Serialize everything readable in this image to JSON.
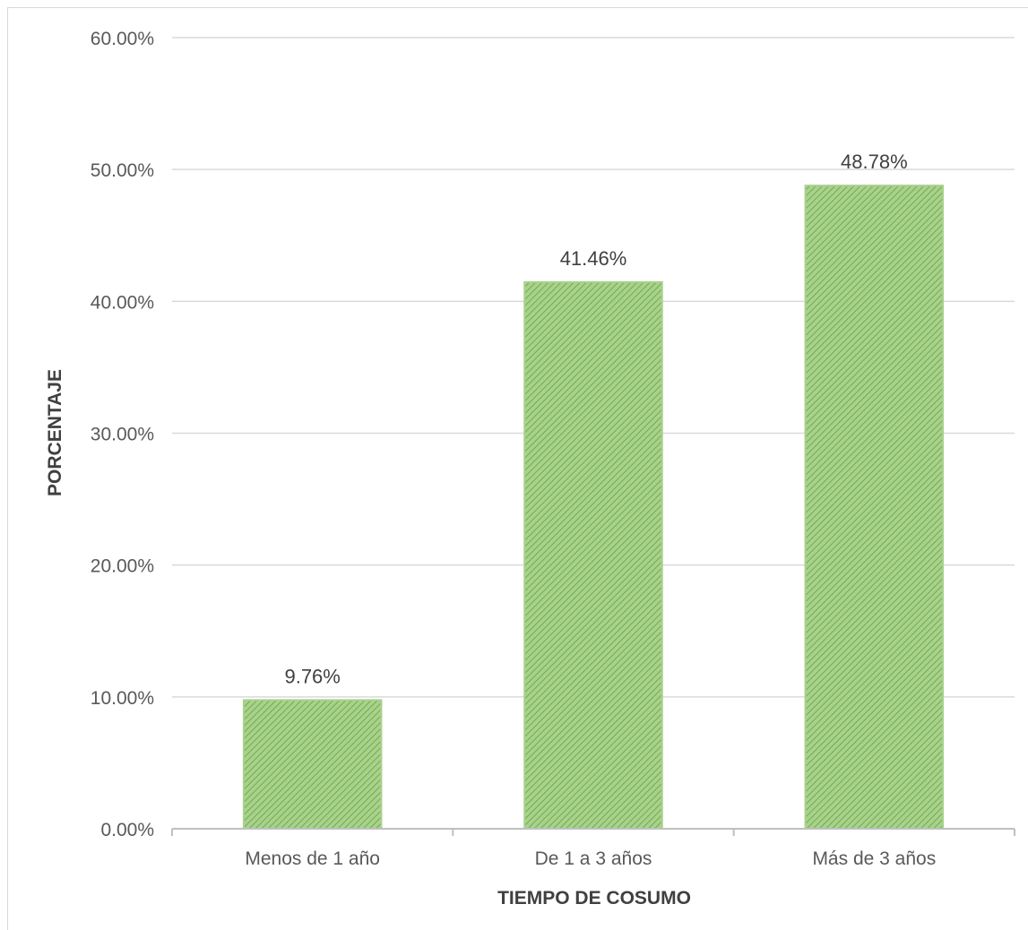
{
  "chart_data": {
    "type": "bar",
    "title": "",
    "xlabel": "TIEMPO DE COSUMO",
    "ylabel": "PORCENTAJE",
    "categories": [
      "Menos de 1 año",
      "De 1 a 3 años",
      "Más de 3 años"
    ],
    "values": [
      9.76,
      41.46,
      48.78
    ],
    "data_labels": [
      "9.76%",
      "41.46%",
      "48.78%"
    ],
    "ylim": [
      0,
      60
    ],
    "yticks": [
      0,
      10,
      20,
      30,
      40,
      50,
      60
    ],
    "ytick_labels": [
      "0.00%",
      "10.00%",
      "20.00%",
      "30.00%",
      "40.00%",
      "50.00%",
      "60.00%"
    ],
    "grid": true,
    "legend": "none",
    "colors": {
      "bar_fill": "#a9d18e",
      "bar_hatch": "#70ad47",
      "grid": "#d9d9d9",
      "axis": "#bfbfbf"
    }
  }
}
